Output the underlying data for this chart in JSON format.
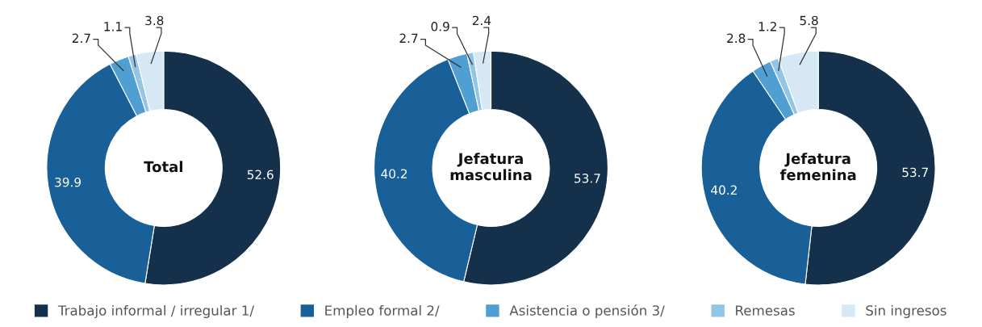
{
  "chart_data": [
    {
      "type": "donut",
      "title": "Total",
      "categories": [
        "Trabajo informal / irregular 1/",
        "Empleo formal 2/",
        "Asistencia o pensión 3/",
        "Remesas",
        "Sin ingresos"
      ],
      "values": [
        52.6,
        39.9,
        2.7,
        1.1,
        3.8
      ],
      "colors": [
        "#14304a",
        "#1a6098",
        "#4f9fd2",
        "#92c5e6",
        "#d5e8f4"
      ],
      "data_labels": true,
      "legend": "bottom"
    },
    {
      "type": "donut",
      "title": "Jefatura masculina",
      "categories": [
        null,
        null,
        null,
        null,
        null
      ],
      "values": [
        53.7,
        40.2,
        2.7,
        0.9,
        2.4
      ],
      "colors": [
        "#14304a",
        "#1a6098",
        "#4f9fd2",
        "#92c5e6",
        "#d5e8f4"
      ],
      "data_labels": true
    },
    {
      "type": "donut",
      "title": "Jefatura femenina",
      "categories": [
        null,
        null,
        null,
        null,
        null
      ],
      "values": [
        53.7,
        40.2,
        2.8,
        1.2,
        5.8
      ],
      "colors": [
        "#14304a",
        "#1a6098",
        "#4f9fd2",
        "#92c5e6",
        "#d5e8f4"
      ],
      "data_labels": true
    }
  ]
}
